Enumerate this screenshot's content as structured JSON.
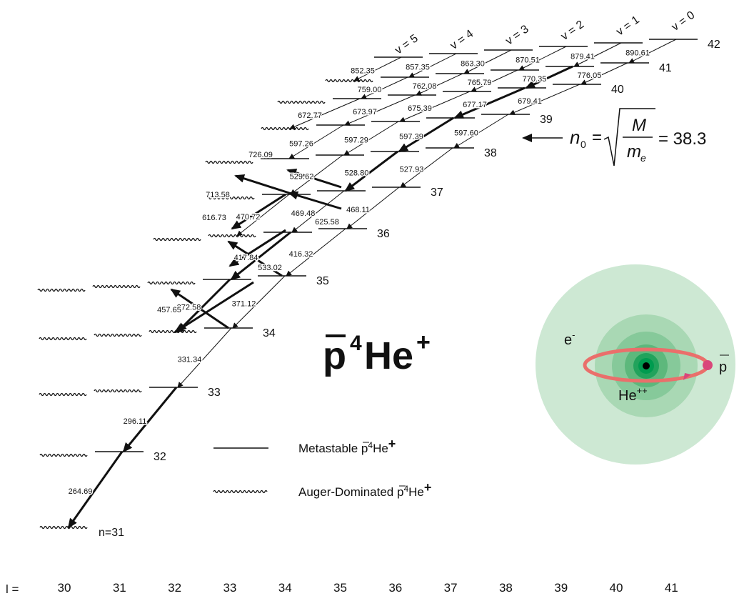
{
  "v_labels": [
    "v = 5",
    "v = 4",
    "v = 3",
    "v = 2",
    "v = 1",
    "v = 0"
  ],
  "n_labels": [
    "42",
    "41",
    "40",
    "39",
    "38",
    "37",
    "36",
    "35",
    "34",
    "33",
    "32",
    "n=31"
  ],
  "transitions": [
    [
      "890.61",
      "879.41",
      "870.51",
      "863.30",
      "857.35",
      "852.35"
    ],
    [
      "776.05",
      "770.35",
      "765.79",
      "762.08",
      "759.00"
    ],
    [
      "679.41",
      "677.17",
      "675.39",
      "673.97",
      "672.77"
    ],
    [
      "597.60",
      "597.39",
      "597.29",
      "597.26"
    ],
    [
      "527.93",
      "528.80",
      "529.62"
    ],
    [
      "468.11",
      "469.48",
      "470.72"
    ],
    [
      "416.32",
      "417.84"
    ],
    [
      "371.12",
      "372.58"
    ],
    [
      "331.34"
    ],
    [
      "296.11"
    ],
    [
      "264.69"
    ]
  ],
  "crossing_transitions": [
    "726.09",
    "713.58",
    "616.73",
    "625.58",
    "533.02",
    "457.65"
  ],
  "formula": {
    "symbol": "n",
    "subscript": "0",
    "equals": "=",
    "numerator": "M",
    "denominator": "m",
    "denominator_subscript": "e",
    "result": "= 38.3"
  },
  "title": {
    "particle": "p",
    "mass": "4",
    "element": "He",
    "charge": "+"
  },
  "legend": {
    "metastable": "Metastable",
    "auger": "Auger-Dominated"
  },
  "atom": {
    "electron": "e",
    "electron_charge": "-",
    "nucleus": "He",
    "nucleus_charge": "++",
    "antiproton": "p"
  },
  "l_axis": {
    "label": "l  =",
    "values": [
      "30",
      "31",
      "32",
      "33",
      "34",
      "35",
      "36",
      "37",
      "38",
      "39",
      "40",
      "41"
    ]
  }
}
